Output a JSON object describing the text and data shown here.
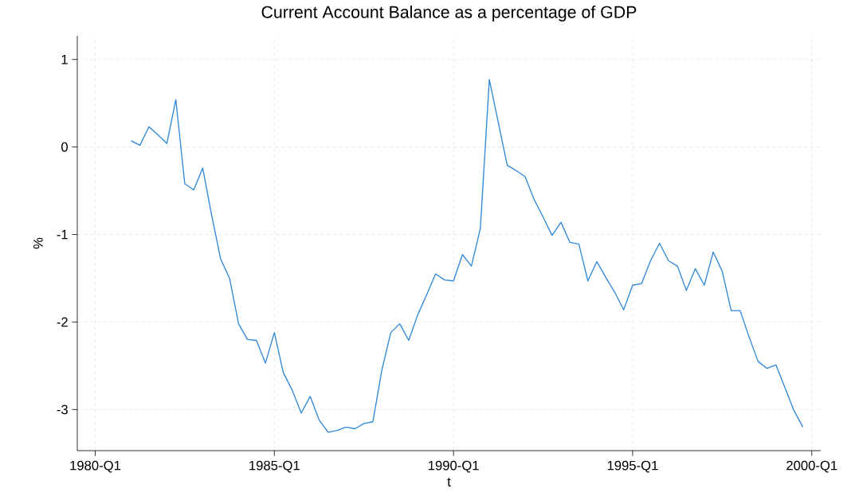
{
  "chart_data": {
    "type": "line",
    "title": "Current Account Balance as a percentage of GDP",
    "xlabel": "t",
    "ylabel": "%",
    "x": [
      "1981-01",
      "1981-04",
      "1981-07",
      "1981-10",
      "1982-01",
      "1982-04",
      "1982-07",
      "1982-10",
      "1983-01",
      "1983-04",
      "1983-07",
      "1983-10",
      "1984-01",
      "1984-04",
      "1984-07",
      "1984-10",
      "1985-01",
      "1985-04",
      "1985-07",
      "1985-10",
      "1986-01",
      "1986-04",
      "1986-07",
      "1986-10",
      "1987-01",
      "1987-04",
      "1987-07",
      "1987-10",
      "1988-01",
      "1988-04",
      "1988-07",
      "1988-10",
      "1989-01",
      "1989-04",
      "1989-07",
      "1989-10",
      "1990-01",
      "1990-04",
      "1990-07",
      "1990-10",
      "1991-01",
      "1991-04",
      "1991-07",
      "1991-10",
      "1992-01",
      "1992-04",
      "1992-07",
      "1992-10",
      "1993-01",
      "1993-04",
      "1993-07",
      "1993-10",
      "1994-01",
      "1994-04",
      "1994-07",
      "1994-10",
      "1995-01",
      "1995-04",
      "1995-07",
      "1995-10",
      "1996-01",
      "1996-04",
      "1996-07",
      "1996-10",
      "1997-01",
      "1997-04",
      "1997-07",
      "1997-10",
      "1998-01",
      "1998-04",
      "1998-07",
      "1998-10",
      "1999-01",
      "1999-04",
      "1999-07",
      "1999-10"
    ],
    "series": [
      {
        "color": "#2f88d8",
        "values": [
          0.07,
          0.02,
          0.23,
          0.14,
          0.04,
          0.54,
          -0.42,
          -0.49,
          -0.24,
          -0.78,
          -1.28,
          -1.5,
          -2.02,
          -2.2,
          -2.21,
          -2.47,
          -2.12,
          -2.58,
          -2.78,
          -3.04,
          -2.85,
          -3.12,
          -3.26,
          -3.24,
          -3.2,
          -3.22,
          -3.16,
          -3.14,
          -2.55,
          -2.12,
          -2.02,
          -2.21,
          -1.92,
          -1.69,
          -1.45,
          -1.52,
          -1.53,
          -1.23,
          -1.36,
          -0.93,
          0.77,
          0.28,
          -0.21,
          -0.27,
          -0.34,
          -0.6,
          -0.8,
          -1.01,
          -0.86,
          -1.09,
          -1.11,
          -1.53,
          -1.31,
          -1.49,
          -1.66,
          -1.86,
          -1.58,
          -1.56,
          -1.3,
          -1.1,
          -1.3,
          -1.36,
          -1.64,
          -1.39,
          -1.58,
          -1.2,
          -1.42,
          -1.87,
          -1.87,
          -2.17,
          -2.45,
          -2.53,
          -2.49,
          -2.75,
          -3.01,
          -3.2
        ]
      }
    ],
    "xlim": [
      "1979-07",
      "2000-04"
    ],
    "ylim": [
      -3.47,
      1.27
    ],
    "xticks": [
      {
        "value": "1980-01",
        "label": "1980-Q1"
      },
      {
        "value": "1985-01",
        "label": "1985-Q1"
      },
      {
        "value": "1990-01",
        "label": "1990-Q1"
      },
      {
        "value": "1995-01",
        "label": "1995-Q1"
      },
      {
        "value": "2000-01",
        "label": "2000-Q1"
      }
    ],
    "yticks": [
      -3,
      -2,
      -1,
      0,
      1
    ],
    "grid": true,
    "marker": "none",
    "line_style": "solid"
  }
}
